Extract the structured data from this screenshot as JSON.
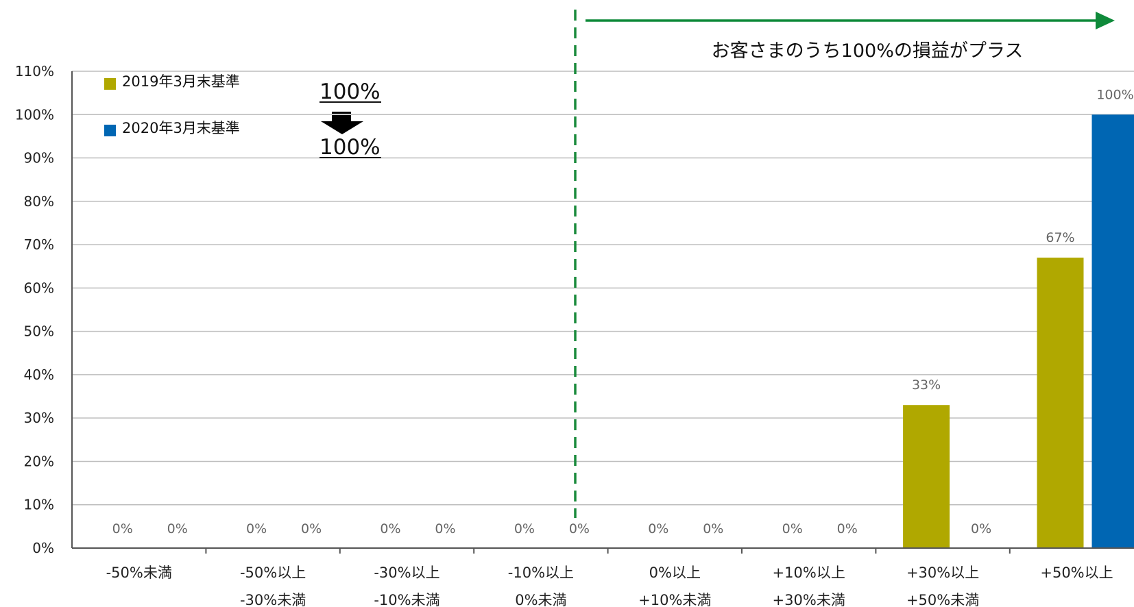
{
  "chart_data": {
    "type": "bar",
    "categories": [
      [
        "-50%未満",
        ""
      ],
      [
        "-50%以上",
        "-30%未満"
      ],
      [
        "-30%以上",
        "-10%未満"
      ],
      [
        "-10%以上",
        "0%未満"
      ],
      [
        "0%以上",
        "+10%未満"
      ],
      [
        "+10%以上",
        "+30%未満"
      ],
      [
        "+30%以上",
        "+50%未満"
      ],
      [
        "+50%以上",
        ""
      ]
    ],
    "series": [
      {
        "name": "2019年3月末基準",
        "color": "#b0a800",
        "values": [
          0,
          0,
          0,
          0,
          0,
          0,
          33,
          67
        ]
      },
      {
        "name": "2020年3月末基準",
        "color": "#0066b3",
        "values": [
          0,
          0,
          0,
          0,
          0,
          0,
          0,
          100
        ]
      }
    ],
    "value_suffix": "%",
    "ylim": [
      0,
      110
    ],
    "yticks": [
      "0%",
      "10%",
      "20%",
      "30%",
      "40%",
      "50%",
      "60%",
      "70%",
      "80%",
      "90%",
      "100%",
      "110%"
    ],
    "grid": true,
    "legend_position": "top-left",
    "annotations": {
      "banner": "お客さまのうち100%の損益がプラス",
      "compare_top": "100%",
      "compare_bottom": "100%"
    }
  },
  "colors": {
    "grid": "#bdbdbd",
    "axis": "#555555",
    "divider": "#1a8a3c",
    "arrow": "#0f8a3a"
  }
}
